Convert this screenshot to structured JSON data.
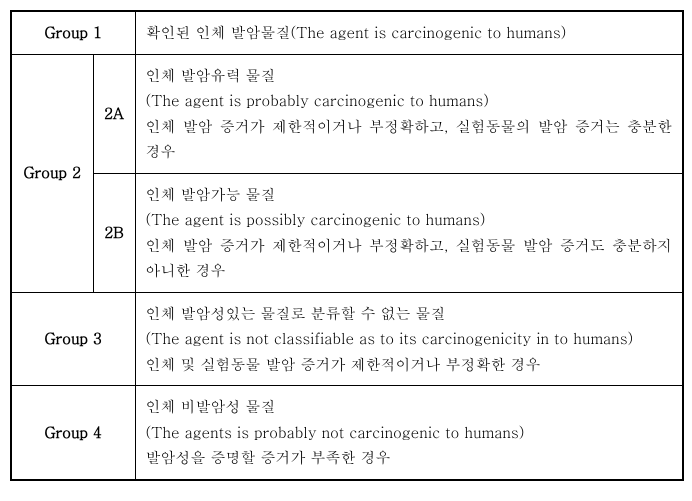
{
  "table": {
    "border_color": "#000000",
    "background_color": "#ffffff",
    "text_color": "#000000",
    "font_size": 15,
    "rows": {
      "group1": {
        "label": "Group 1",
        "desc": "확인된 인체 발암물질(The agent is carcinogenic to humans)"
      },
      "group2": {
        "label": "Group 2",
        "sub2a_label": "2A",
        "sub2a_desc": "인체 발암유력 물질\n(The agent is probably carcinogenic to humans)\n인체 발암 증거가 제한적이거나 부정확하고, 실험동물의 발암 증거는 충분한 경우",
        "sub2b_label": "2B",
        "sub2b_desc": "인체 발암가능 물질\n(The agent is possibly carcinogenic to humans)\n인체 발암 증거가 제한적이거나 부정확하고, 실험동물 발암 증거도 충분하지 아니한 경우"
      },
      "group3": {
        "label": "Group 3",
        "desc": "인체 발암성있는 물질로 분류할 수 없는 물질\n(The agent is not classifiable as to its carcinogenicity in to humans)\n인체 및 실험동물 발암 증거가 제한적이거나 부정확한 경우"
      },
      "group4": {
        "label": "Group 4",
        "desc": "인체 비발암성 물질\n(The agents is probably not carcinogenic to humans)\n발암성을 증명할 증거가 부족한 경우"
      }
    }
  }
}
